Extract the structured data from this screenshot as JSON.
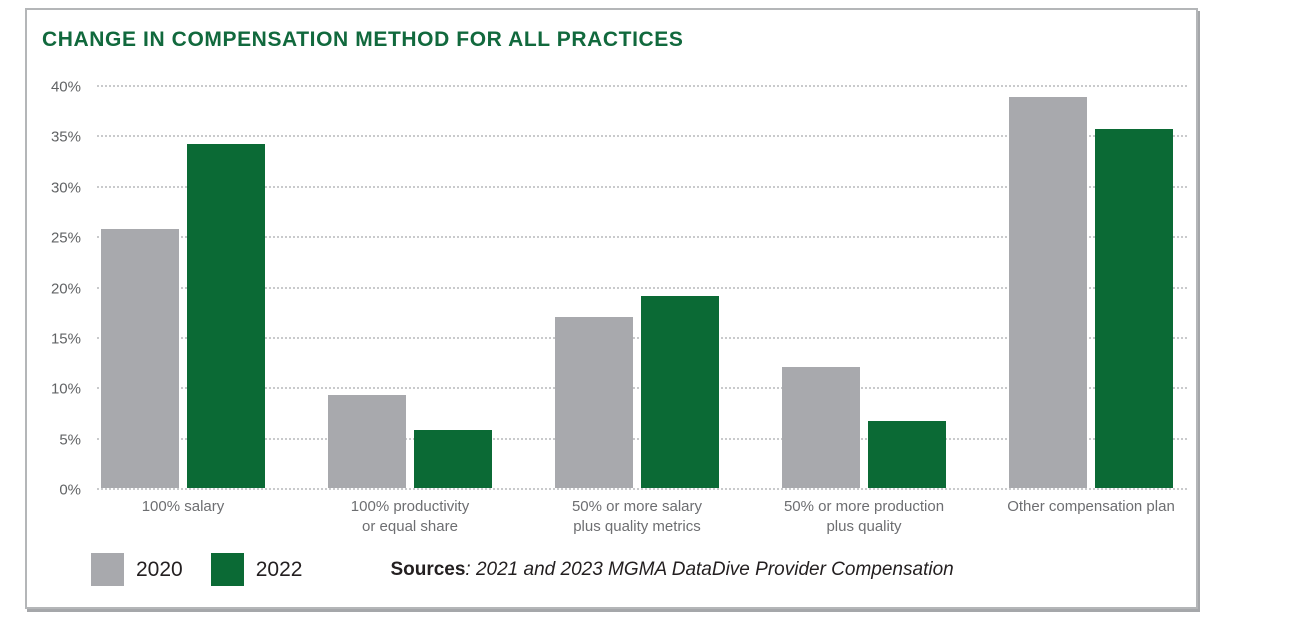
{
  "chart_data": {
    "type": "bar",
    "title": "CHANGE IN COMPENSATION METHOD FOR ALL PRACTICES",
    "categories": [
      "100% salary",
      "100% productivity\nor equal share",
      "50% or more salary\nplus quality metrics",
      "50% or more production\nplus quality",
      "Other compensation plan"
    ],
    "series": [
      {
        "name": "2020",
        "color": "#a8a9ad",
        "values": [
          25.7,
          9.2,
          17.0,
          12.0,
          38.8
        ]
      },
      {
        "name": "2022",
        "color": "#0b6a35",
        "values": [
          34.1,
          5.8,
          19.1,
          6.7,
          35.6
        ]
      }
    ],
    "ylim": [
      0,
      40
    ],
    "yticks": [
      40,
      35,
      30,
      25,
      20,
      15,
      10,
      5,
      0
    ],
    "ytick_suffix": "%",
    "xlabel": "",
    "ylabel": "",
    "grid": "horizontal dotted lines every 5%",
    "legend_position": "bottom-left",
    "sources_label": "Sources",
    "sources_rest": ": 2021 and 2023 MGMA DataDive Provider Compensation"
  },
  "colors": {
    "title_green": "#11693d",
    "bar_green": "#0b6a35",
    "bar_gray": "#a8a9ad",
    "axis_text_gray": "#616365",
    "category_text_gray": "#6d6e71",
    "legend_text": "#231f20",
    "gridline_gray": "#c9cacc",
    "card_border_gray": "#b4b6b8"
  }
}
